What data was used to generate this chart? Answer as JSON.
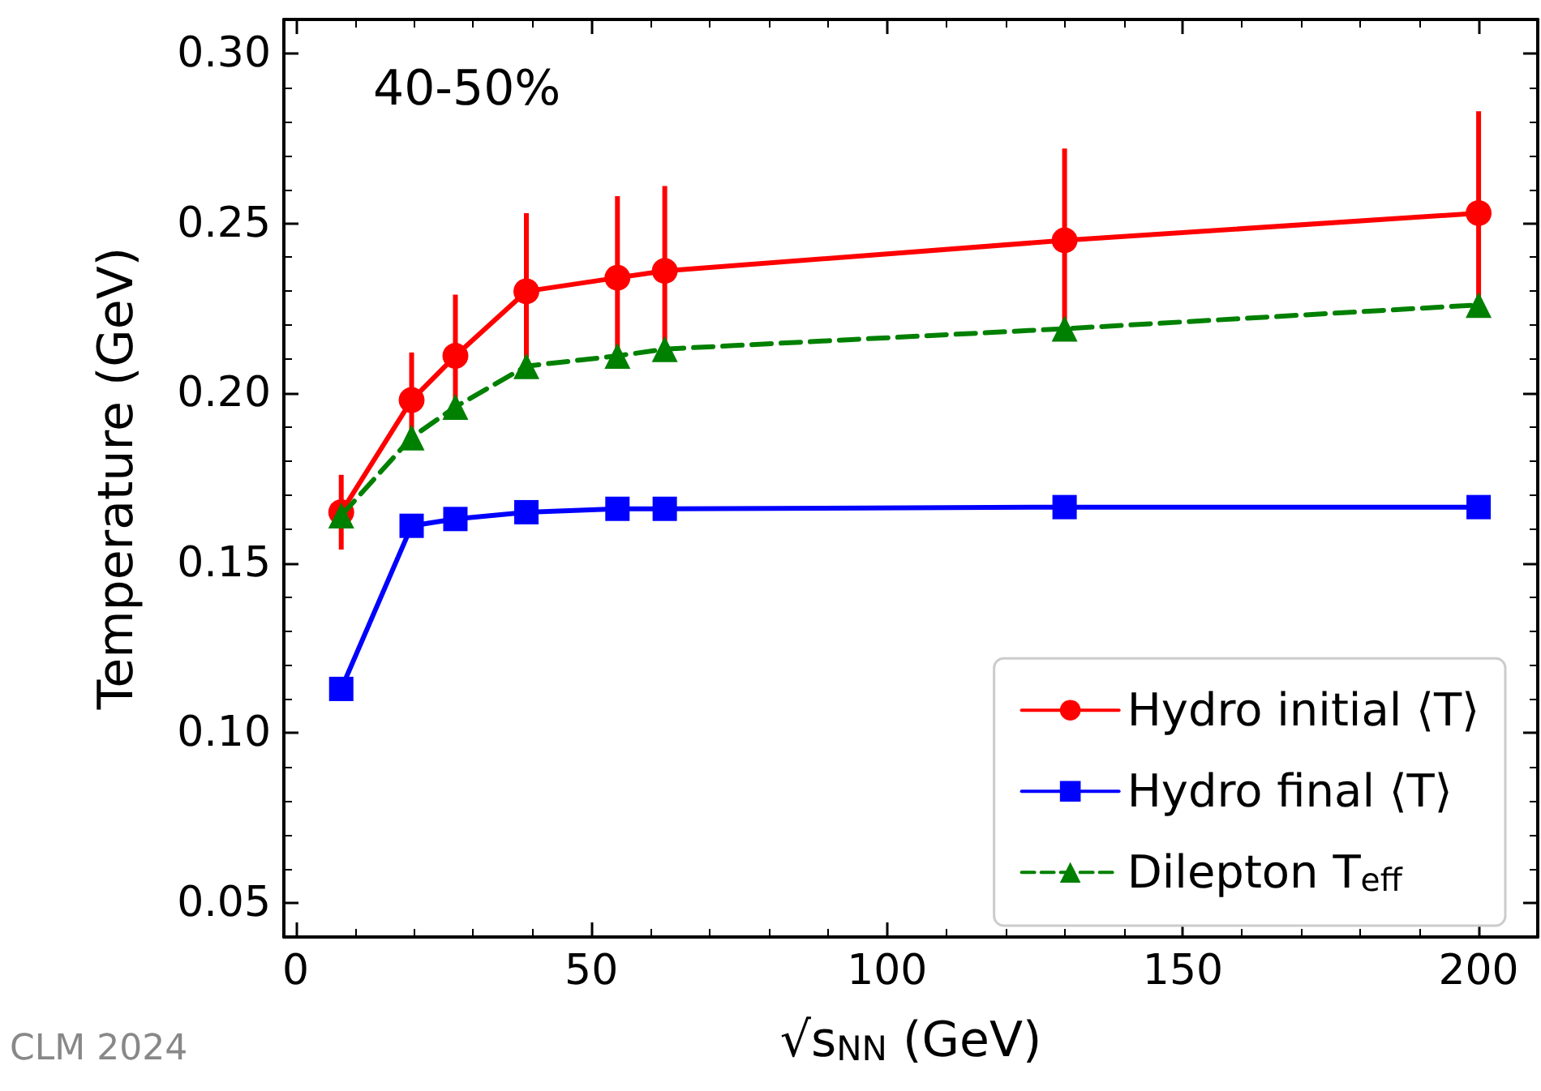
{
  "chart_data": {
    "type": "line",
    "xlabel": "√s$_{NN}$ (GeV)",
    "ylabel": "Temperature (GeV)",
    "annotations": [
      "40-50%",
      "CLM 2024"
    ],
    "x": [
      7.7,
      19.6,
      27,
      39,
      54.4,
      62.4,
      130,
      200
    ],
    "xlim": [
      -2,
      210
    ],
    "xticks": [
      0,
      50,
      100,
      150,
      200
    ],
    "ylim": [
      0.04,
      0.31
    ],
    "yticks": [
      {
        "value": 0.05,
        "label": "0.05"
      },
      {
        "value": 0.1,
        "label": "0.10"
      },
      {
        "value": 0.15,
        "label": "0.15"
      },
      {
        "value": 0.2,
        "label": "0.20"
      },
      {
        "value": 0.25,
        "label": "0.25"
      },
      {
        "value": 0.3,
        "label": "0.30"
      }
    ],
    "grid": false,
    "legend": "bottom right",
    "series": [
      {
        "name": "Hydro initial ⟨T⟩",
        "color": "#ff0000",
        "marker": "circle",
        "line_style": "solid",
        "values": [
          0.165,
          0.198,
          0.211,
          0.23,
          0.234,
          0.236,
          0.245,
          0.253
        ],
        "errors": [
          0.011,
          0.014,
          0.018,
          0.023,
          0.024,
          0.025,
          0.027,
          0.03
        ]
      },
      {
        "name": "Hydro final ⟨T⟩",
        "color": "#0000ff",
        "marker": "square",
        "line_style": "solid",
        "values": [
          0.113,
          0.161,
          0.163,
          0.165,
          0.166,
          0.166,
          0.1665,
          0.1665
        ]
      },
      {
        "name": "Dilepton T$_{eff}$",
        "color": "#008000",
        "marker": "triangle",
        "line_style": "dashed",
        "values": [
          0.164,
          0.187,
          0.196,
          0.208,
          0.211,
          0.213,
          0.219,
          0.226
        ]
      }
    ]
  }
}
